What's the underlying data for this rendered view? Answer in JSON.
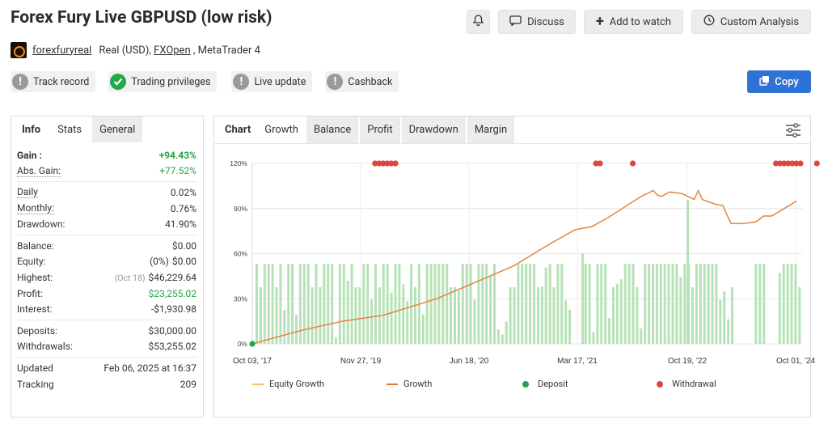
{
  "header": {
    "title": "Forex Fury Live GBPUSD (low risk)",
    "buttons": {
      "discuss": "Discuss",
      "watch": "Add to watch",
      "analysis": "Custom Analysis"
    }
  },
  "account": {
    "user": "forexfuryreal",
    "type": "Real (USD), ",
    "broker": "FXOpen",
    "platform": " , MetaTrader 4"
  },
  "badges": [
    "Track record",
    "Trading privileges",
    "Live update",
    "Cashback"
  ],
  "copy_label": "Copy",
  "left_tabs": [
    "Info",
    "Stats",
    "General"
  ],
  "stats": {
    "gain": {
      "k": "Gain :",
      "v": "+94.43%"
    },
    "abs_gain": {
      "k": "Abs. Gain:",
      "v": "+77.52%"
    },
    "daily": {
      "k": "Daily",
      "v": "0.02%"
    },
    "monthly": {
      "k": "Monthly:",
      "v": "0.76%"
    },
    "drawdown": {
      "k": "Drawdown:",
      "v": "41.90%"
    },
    "balance": {
      "k": "Balance:",
      "v": "$0.00"
    },
    "equity": {
      "k": "Equity:",
      "pre": "(0%)",
      "v": "$0.00"
    },
    "highest": {
      "k": "Highest:",
      "pre": "(Oct 18)",
      "v": "$46,229.64"
    },
    "profit": {
      "k": "Profit:",
      "v": "$23,255.02"
    },
    "interest": {
      "k": "Interest:",
      "v": "-$1,930.98"
    },
    "deposits": {
      "k": "Deposits:",
      "v": "$30,000.00"
    },
    "withdrawals": {
      "k": "Withdrawals:",
      "v": "$53,255.02"
    },
    "updated": {
      "k": "Updated",
      "v": "Feb 06, 2025 at 16:37"
    },
    "tracking": {
      "k": "Tracking",
      "v": "209"
    }
  },
  "chart_tabs": [
    "Chart",
    "Growth",
    "Balance",
    "Profit",
    "Drawdown",
    "Margin"
  ],
  "chart_data": {
    "type": "line",
    "y_ticks": [
      "0%",
      "30%",
      "60%",
      "90%",
      "120%"
    ],
    "x_ticks": [
      "Oct 03, '17",
      "Nov 27, '19",
      "Jun 18, '20",
      "Mar 17, '21",
      "Oct 19, '22",
      "Oct 01, '24"
    ],
    "ylim": [
      0,
      120
    ],
    "growth": [
      [
        0,
        0
      ],
      [
        0.04,
        3
      ],
      [
        0.08,
        6
      ],
      [
        0.12,
        9
      ],
      [
        0.17,
        12
      ],
      [
        0.22,
        15
      ],
      [
        0.27,
        17
      ],
      [
        0.32,
        19
      ],
      [
        0.38,
        24
      ],
      [
        0.45,
        30
      ],
      [
        0.52,
        38
      ],
      [
        0.58,
        45
      ],
      [
        0.64,
        52
      ],
      [
        0.7,
        62
      ],
      [
        0.75,
        70
      ],
      [
        0.79,
        76
      ],
      [
        0.83,
        78
      ],
      [
        0.87,
        84
      ],
      [
        0.91,
        91
      ],
      [
        0.95,
        98
      ],
      [
        0.98,
        102
      ],
      [
        0.99,
        99
      ],
      [
        1.0,
        98
      ],
      [
        1.02,
        101
      ],
      [
        1.05,
        100
      ],
      [
        1.08,
        96
      ],
      [
        1.09,
        102
      ],
      [
        1.1,
        96
      ],
      [
        1.13,
        93
      ],
      [
        1.15,
        92
      ],
      [
        1.17,
        80
      ],
      [
        1.2,
        80
      ],
      [
        1.23,
        81
      ],
      [
        1.25,
        85
      ],
      [
        1.27,
        85
      ],
      [
        1.3,
        90
      ],
      [
        1.33,
        95
      ]
    ],
    "deposit_markers": [
      [
        0,
        0
      ]
    ],
    "withdrawal_markers": [
      0.3,
      0.31,
      0.32,
      0.33,
      0.34,
      0.35,
      0.84,
      0.85,
      0.93,
      1.28,
      1.29,
      1.3,
      1.31,
      1.32,
      1.33,
      1.34,
      1.38,
      1.42
    ],
    "legend": [
      "Equity Growth",
      "Growth",
      "Deposit",
      "Withdrawal"
    ],
    "colors": {
      "equity": "#f2c266",
      "growth": "#e0793d",
      "deposit": "#1aa64b",
      "withdrawal": "#e0453c",
      "bars": "#b7e2b7"
    }
  }
}
